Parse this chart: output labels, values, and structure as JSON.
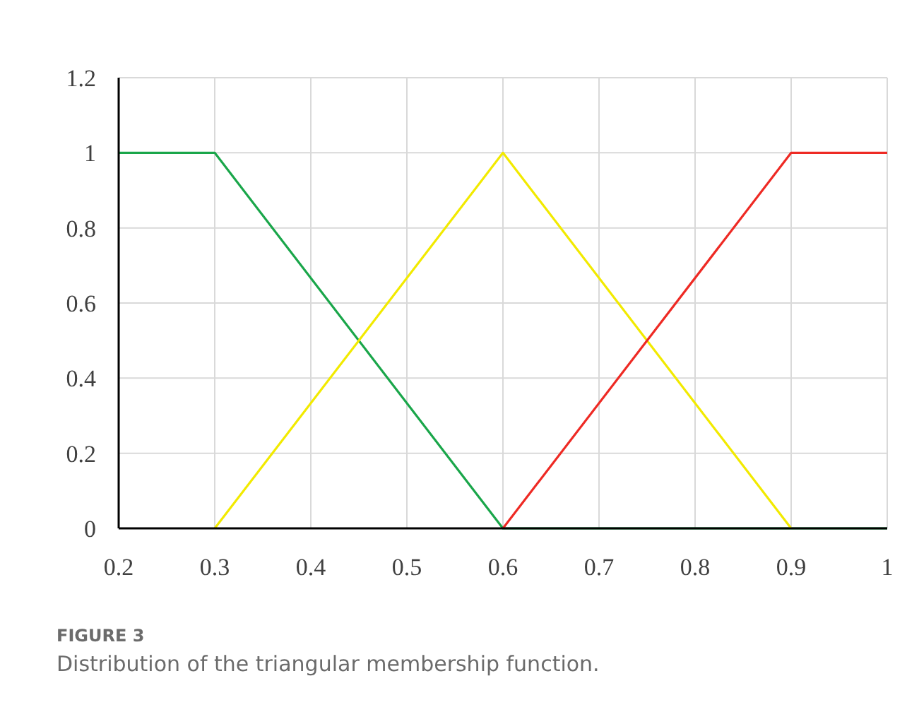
{
  "chart_data": {
    "type": "line",
    "x": [
      0.2,
      0.3,
      0.6,
      0.9,
      1
    ],
    "series": [
      {
        "color": "#1aa64a",
        "values": [
          1,
          1,
          0,
          0,
          0
        ]
      },
      {
        "color": "#f2ea00",
        "values": [
          null,
          0,
          1,
          0,
          null
        ]
      },
      {
        "color": "#ee2a24",
        "values": [
          null,
          null,
          0,
          1,
          1
        ]
      }
    ],
    "xlim": [
      0.2,
      1
    ],
    "xticks": [
      0.2,
      0.3,
      0.4,
      0.5,
      0.6,
      0.7,
      0.8,
      0.9,
      1
    ],
    "ylim": [
      0,
      1.2
    ],
    "yticks": [
      0,
      0.2,
      0.4,
      0.6,
      0.8,
      1,
      1.2
    ],
    "grid": true,
    "marker": "none",
    "line_style": "solid",
    "annotations": [
      "FIGURE 3",
      "Distribution of the triangular membership function."
    ]
  }
}
